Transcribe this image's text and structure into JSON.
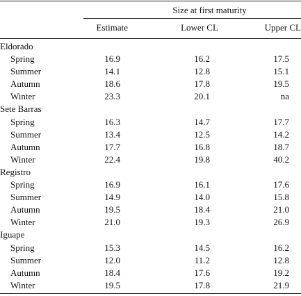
{
  "table": {
    "group_header": "Size at first maturity",
    "columns": {
      "estimate": "Estimate",
      "lower": "Lower CL",
      "upper": "Upper CL"
    },
    "sites": [
      {
        "name": "Eldorado",
        "rows": [
          {
            "season": "Spring",
            "estimate": "16.9",
            "lower": "16.2",
            "upper": "17.5"
          },
          {
            "season": "Summer",
            "estimate": "14.1",
            "lower": "12.8",
            "upper": "15.1"
          },
          {
            "season": "Autumn",
            "estimate": "18.6",
            "lower": "17.8",
            "upper": "19.5"
          },
          {
            "season": "Winter",
            "estimate": "23.3",
            "lower": "20.1",
            "upper": "na"
          }
        ]
      },
      {
        "name": "Sete Barras",
        "rows": [
          {
            "season": "Spring",
            "estimate": "16.3",
            "lower": "14.7",
            "upper": "17.7"
          },
          {
            "season": "Summer",
            "estimate": "13.4",
            "lower": "12.5",
            "upper": "14.2"
          },
          {
            "season": "Autumn",
            "estimate": "17.7",
            "lower": "16.8",
            "upper": "18.7"
          },
          {
            "season": "Winter",
            "estimate": "22.4",
            "lower": "19.8",
            "upper": "40.2"
          }
        ]
      },
      {
        "name": "Registro",
        "rows": [
          {
            "season": "Spring",
            "estimate": "16.9",
            "lower": "16.1",
            "upper": "17.6"
          },
          {
            "season": "Summer",
            "estimate": "14.9",
            "lower": "14.0",
            "upper": "15.8"
          },
          {
            "season": "Autumn",
            "estimate": "19.5",
            "lower": "18.4",
            "upper": "21.0"
          },
          {
            "season": "Winter",
            "estimate": "21.0",
            "lower": "19.3",
            "upper": "26.9"
          }
        ]
      },
      {
        "name": "Iguape",
        "rows": [
          {
            "season": "Spring",
            "estimate": "15.3",
            "lower": "14.5",
            "upper": "16.2"
          },
          {
            "season": "Summer",
            "estimate": "12.0",
            "lower": "11.2",
            "upper": "12.8"
          },
          {
            "season": "Autumn",
            "estimate": "18.4",
            "lower": "17.6",
            "upper": "19.2"
          },
          {
            "season": "Winter",
            "estimate": "19.5",
            "lower": "17.8",
            "upper": "21.9"
          }
        ]
      }
    ]
  }
}
